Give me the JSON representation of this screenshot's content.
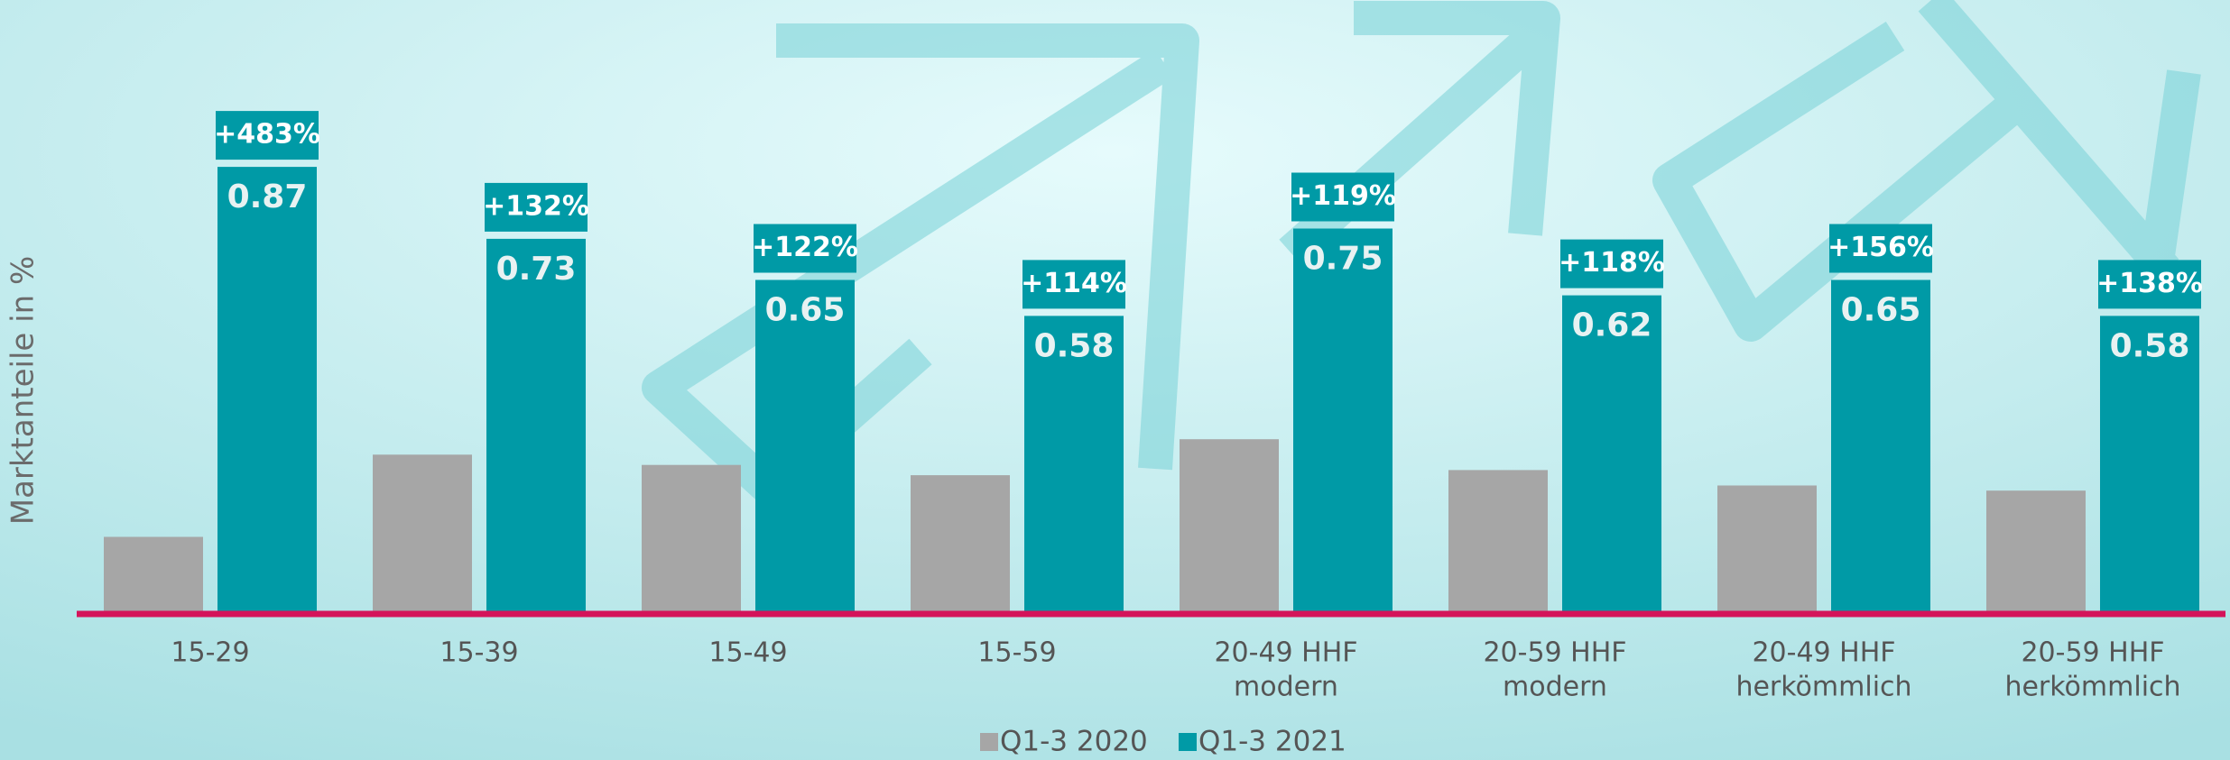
{
  "chart_data": {
    "type": "bar",
    "y_axis_label": "Marktanteile in %",
    "categories": [
      [
        "15-29"
      ],
      [
        "15-39"
      ],
      [
        "15-49"
      ],
      [
        "15-59"
      ],
      [
        "20-49 HHF",
        "modern"
      ],
      [
        "20-59 HHF",
        "modern"
      ],
      [
        "20-49 HHF",
        "herkömmlich"
      ],
      [
        "20-59 HHF",
        "herkömmlich"
      ]
    ],
    "series": [
      {
        "name": "Q1-3 2020",
        "color": "#a6a6a6",
        "values": [
          0.15,
          0.31,
          0.29,
          0.27,
          0.34,
          0.28,
          0.25,
          0.24
        ]
      },
      {
        "name": "Q1-3 2021",
        "color": "#009aa6",
        "values": [
          0.87,
          0.73,
          0.65,
          0.58,
          0.75,
          0.62,
          0.65,
          0.58
        ],
        "change_labels": [
          "+483%",
          "+132%",
          "+122%",
          "+114%",
          "+119%",
          "+118%",
          "+156%",
          "+138%"
        ]
      }
    ],
    "ylim": [
      0,
      1
    ],
    "axis_line_color": "#d4145a"
  }
}
